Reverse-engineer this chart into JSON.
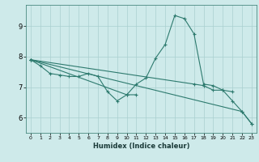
{
  "x": [
    0,
    1,
    2,
    3,
    4,
    5,
    6,
    7,
    8,
    9,
    10,
    11,
    12,
    13,
    14,
    15,
    16,
    17,
    18,
    19,
    20,
    21,
    22,
    23
  ],
  "line1": [
    7.9,
    7.7,
    7.45,
    7.4,
    7.35,
    7.35,
    7.45,
    7.35,
    6.85,
    6.55,
    6.75,
    6.75,
    null,
    null,
    null,
    null,
    null,
    null,
    null,
    null,
    null,
    null,
    null,
    null
  ],
  "line2": [
    7.9,
    null,
    null,
    null,
    null,
    null,
    null,
    null,
    null,
    null,
    6.75,
    7.1,
    7.3,
    7.95,
    8.4,
    9.35,
    9.25,
    8.75,
    7.1,
    7.05,
    6.9,
    6.55,
    6.2,
    5.8
  ],
  "line3": [
    7.9,
    null,
    null,
    null,
    null,
    null,
    null,
    null,
    null,
    null,
    null,
    null,
    null,
    null,
    null,
    null,
    null,
    7.1,
    7.05,
    6.9,
    6.9,
    6.85,
    null,
    null
  ],
  "line4": [
    7.9,
    null,
    null,
    null,
    null,
    null,
    null,
    null,
    null,
    null,
    null,
    null,
    null,
    null,
    null,
    null,
    null,
    null,
    null,
    null,
    null,
    null,
    6.2,
    5.8
  ],
  "background_color": "#ceeaea",
  "line_color": "#2d7a6e",
  "grid_color": "#aacfcf",
  "xlabel": "Humidex (Indice chaleur)",
  "ylim": [
    5.5,
    9.7
  ],
  "xlim": [
    -0.5,
    23.5
  ],
  "yticks": [
    6,
    7,
    8,
    9
  ],
  "xticks": [
    0,
    1,
    2,
    3,
    4,
    5,
    6,
    7,
    8,
    9,
    10,
    11,
    12,
    13,
    14,
    15,
    16,
    17,
    18,
    19,
    20,
    21,
    22,
    23
  ],
  "marker": "+"
}
